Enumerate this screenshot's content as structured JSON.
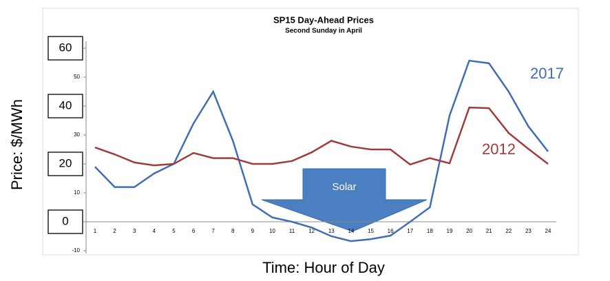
{
  "chart_data": {
    "type": "line",
    "title": "SP15 Day-Ahead Prices",
    "subtitle": "Second Sunday in April",
    "y_label": "Price: $/MWh",
    "x_label": "Time: Hour of Day",
    "annotation": "Solar",
    "categories": [
      "1",
      "2",
      "3",
      "4",
      "5",
      "6",
      "7",
      "8",
      "9",
      "10",
      "11",
      "12",
      "13",
      "14",
      "15",
      "16",
      "17",
      "18",
      "19",
      "20",
      "21",
      "22",
      "23",
      "24"
    ],
    "series": [
      {
        "name": "2017",
        "color": "#3f6db5",
        "values": [
          19,
          12,
          12,
          16.7,
          20,
          34,
          45,
          28,
          6,
          1.5,
          0,
          -2,
          -5,
          -6.7,
          -6,
          -4.8,
          0,
          5,
          36.7,
          55.7,
          54.8,
          45,
          33,
          24.3
        ]
      },
      {
        "name": "2012",
        "color": "#a33a3a",
        "values": [
          25.7,
          23.3,
          20.5,
          19.5,
          20,
          23.8,
          22,
          22,
          20,
          20,
          21,
          24,
          28,
          26,
          25,
          25,
          19.8,
          22,
          20.2,
          39.5,
          39.3,
          30.7,
          25.2,
          20
        ]
      }
    ],
    "ylim": [
      -10,
      60
    ],
    "yticks": [
      -10,
      0,
      10,
      20,
      30,
      40,
      50,
      60
    ]
  }
}
